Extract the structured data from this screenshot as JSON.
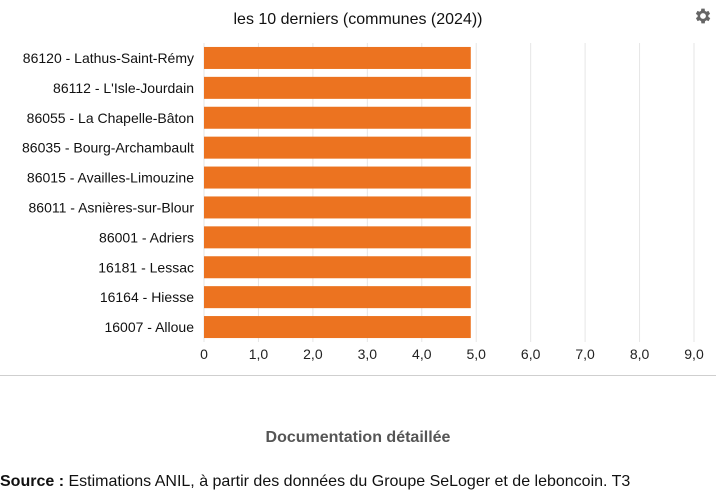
{
  "chart_data": {
    "type": "bar",
    "orientation": "horizontal",
    "title": "les 10 derniers (communes (2024))",
    "categories": [
      "86120 - Lathus-Saint-Rémy",
      "86112 - L'Isle-Jourdain",
      "86055 - La Chapelle-Bâton",
      "86035 - Bourg-Archambault",
      "86015 - Availles-Limouzine",
      "86011 - Asnières-sur-Blour",
      "86001 - Adriers",
      "16181 - Lessac",
      "16164 - Hiesse",
      "16007 - Alloue"
    ],
    "values": [
      4.9,
      4.9,
      4.9,
      4.9,
      4.9,
      4.9,
      4.9,
      4.9,
      4.9,
      4.9
    ],
    "xlim": [
      0,
      9
    ],
    "xticks": [
      "0",
      "1,0",
      "2,0",
      "3,0",
      "4,0",
      "5,0",
      "6,0",
      "7,0",
      "8,0",
      "9,0"
    ],
    "grid": true,
    "bar_color": "#ec7320",
    "grid_color": "#e6e6e6",
    "xlabel": "",
    "ylabel": ""
  },
  "toolbar": {
    "settings_icon": "gear-icon"
  },
  "footer": {
    "documentation_label": "Documentation détaillée",
    "source_label": "Source :",
    "source_text": "Estimations ANIL, à partir des données du Groupe SeLoger et de leboncoin. T3"
  }
}
